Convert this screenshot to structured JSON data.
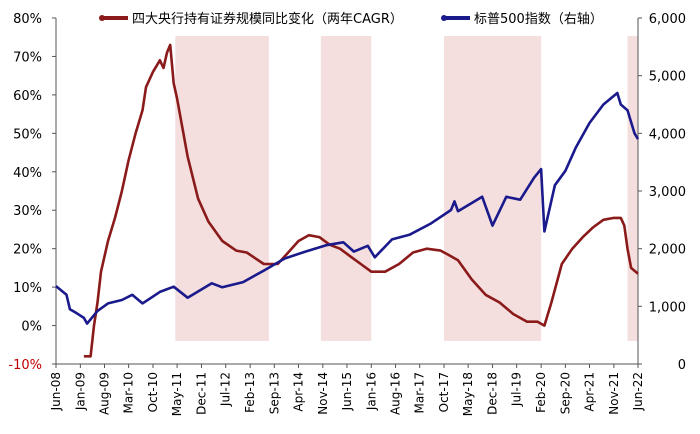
{
  "chart_data": {
    "type": "line",
    "legend": {
      "position": "top"
    },
    "colors": {
      "cagr": "#8b1a1a",
      "sp500": "#1a1a8c",
      "shade": "#f4dede",
      "axis": "#555555"
    },
    "series": [
      {
        "name": "四大央行持有证券规模同比变化（两年CAGR）",
        "axis": "left",
        "points": [
          [
            "2009-02-01",
            -8
          ],
          [
            "2009-04-01",
            -8
          ],
          [
            "2009-05-01",
            0
          ],
          [
            "2009-06-01",
            6
          ],
          [
            "2009-07-01",
            14
          ],
          [
            "2009-09-01",
            22
          ],
          [
            "2009-11-01",
            28
          ],
          [
            "2010-01-01",
            35
          ],
          [
            "2010-03-01",
            43
          ],
          [
            "2010-05-01",
            50
          ],
          [
            "2010-07-01",
            56
          ],
          [
            "2010-08-01",
            62
          ],
          [
            "2010-10-01",
            66
          ],
          [
            "2010-12-01",
            69
          ],
          [
            "2011-01-01",
            67
          ],
          [
            "2011-02-01",
            71
          ],
          [
            "2011-03-01",
            73
          ],
          [
            "2011-04-01",
            63
          ],
          [
            "2011-05-01",
            59
          ],
          [
            "2011-08-01",
            44
          ],
          [
            "2011-11-01",
            33
          ],
          [
            "2012-02-01",
            27
          ],
          [
            "2012-06-01",
            22
          ],
          [
            "2012-10-01",
            19.5
          ],
          [
            "2013-01-01",
            19
          ],
          [
            "2013-06-01",
            16
          ],
          [
            "2013-10-01",
            16
          ],
          [
            "2014-01-01",
            19
          ],
          [
            "2014-04-01",
            22
          ],
          [
            "2014-07-01",
            23.5
          ],
          [
            "2014-10-01",
            23
          ],
          [
            "2015-01-01",
            21
          ],
          [
            "2015-04-01",
            20
          ],
          [
            "2015-07-01",
            18
          ],
          [
            "2015-10-01",
            16
          ],
          [
            "2016-01-01",
            14
          ],
          [
            "2016-05-01",
            14
          ],
          [
            "2016-09-01",
            16
          ],
          [
            "2017-01-01",
            19
          ],
          [
            "2017-05-01",
            20
          ],
          [
            "2017-09-01",
            19.5
          ],
          [
            "2017-11-01",
            18.5
          ],
          [
            "2018-02-01",
            17
          ],
          [
            "2018-06-01",
            12
          ],
          [
            "2018-10-01",
            8
          ],
          [
            "2019-02-01",
            6
          ],
          [
            "2019-06-01",
            3
          ],
          [
            "2019-10-01",
            1
          ],
          [
            "2020-01-01",
            1
          ],
          [
            "2020-03-01",
            0
          ],
          [
            "2020-05-01",
            6
          ],
          [
            "2020-08-01",
            16
          ],
          [
            "2020-11-01",
            20
          ],
          [
            "2021-02-01",
            23
          ],
          [
            "2021-05-01",
            25.5
          ],
          [
            "2021-08-01",
            27.5
          ],
          [
            "2021-11-01",
            28
          ],
          [
            "2022-01-01",
            28
          ],
          [
            "2022-02-01",
            26
          ],
          [
            "2022-03-01",
            20
          ],
          [
            "2022-04-01",
            15
          ],
          [
            "2022-06-01",
            13.5
          ]
        ]
      },
      {
        "name": "标普500指数（右轴）",
        "axis": "right",
        "points": [
          [
            "2008-06-01",
            1350
          ],
          [
            "2008-09-01",
            1200
          ],
          [
            "2008-10-01",
            950
          ],
          [
            "2008-12-01",
            880
          ],
          [
            "2009-02-01",
            800
          ],
          [
            "2009-03-01",
            700
          ],
          [
            "2009-06-01",
            920
          ],
          [
            "2009-09-01",
            1050
          ],
          [
            "2010-01-01",
            1110
          ],
          [
            "2010-04-01",
            1200
          ],
          [
            "2010-07-01",
            1050
          ],
          [
            "2010-12-01",
            1250
          ],
          [
            "2011-04-01",
            1340
          ],
          [
            "2011-08-01",
            1150
          ],
          [
            "2011-10-01",
            1220
          ],
          [
            "2012-03-01",
            1400
          ],
          [
            "2012-06-01",
            1330
          ],
          [
            "2012-12-01",
            1420
          ],
          [
            "2013-06-01",
            1620
          ],
          [
            "2013-12-01",
            1830
          ],
          [
            "2014-06-01",
            1950
          ],
          [
            "2014-12-01",
            2060
          ],
          [
            "2015-05-01",
            2110
          ],
          [
            "2015-08-01",
            1950
          ],
          [
            "2015-12-01",
            2050
          ],
          [
            "2016-02-01",
            1850
          ],
          [
            "2016-07-01",
            2160
          ],
          [
            "2016-12-01",
            2240
          ],
          [
            "2017-06-01",
            2430
          ],
          [
            "2017-12-01",
            2670
          ],
          [
            "2018-01-01",
            2820
          ],
          [
            "2018-02-01",
            2650
          ],
          [
            "2018-09-01",
            2900
          ],
          [
            "2018-12-01",
            2400
          ],
          [
            "2019-04-01",
            2900
          ],
          [
            "2019-08-01",
            2850
          ],
          [
            "2019-12-01",
            3230
          ],
          [
            "2020-02-01",
            3380
          ],
          [
            "2020-03-01",
            2300
          ],
          [
            "2020-06-01",
            3100
          ],
          [
            "2020-09-01",
            3350
          ],
          [
            "2020-12-01",
            3750
          ],
          [
            "2021-04-01",
            4180
          ],
          [
            "2021-08-01",
            4500
          ],
          [
            "2021-12-01",
            4700
          ],
          [
            "2022-01-01",
            4500
          ],
          [
            "2022-03-01",
            4400
          ],
          [
            "2022-05-01",
            4000
          ],
          [
            "2022-06-01",
            3900
          ]
        ]
      }
    ],
    "shaded_periods": [
      [
        "2011-04-15",
        "2013-07-15"
      ],
      [
        "2014-10-15",
        "2016-01-01"
      ],
      [
        "2017-10-01",
        "2020-02-01"
      ],
      [
        "2022-03-01",
        "2022-06-30"
      ]
    ],
    "y_left": {
      "min": -10,
      "max": 80,
      "step": 10,
      "tick_labels": [
        "-10%",
        "0%",
        "10%",
        "20%",
        "30%",
        "40%",
        "50%",
        "60%",
        "70%",
        "80%"
      ]
    },
    "y_right": {
      "min": 0,
      "max": 6000,
      "step": 1000,
      "tick_labels": [
        "0",
        "1,000",
        "2,000",
        "3,000",
        "4,000",
        "5,000",
        "6,000"
      ]
    },
    "x_axis": {
      "min": "2008-06-01",
      "max": "2022-06-01",
      "ticks": [
        [
          "2008-06-01",
          "Jun-08"
        ],
        [
          "2009-01-01",
          "Jan-09"
        ],
        [
          "2009-08-01",
          "Aug-09"
        ],
        [
          "2010-03-01",
          "Mar-10"
        ],
        [
          "2010-10-01",
          "Oct-10"
        ],
        [
          "2011-05-01",
          "May-11"
        ],
        [
          "2011-12-01",
          "Dec-11"
        ],
        [
          "2012-07-01",
          "Jul-12"
        ],
        [
          "2013-02-01",
          "Feb-13"
        ],
        [
          "2013-09-01",
          "Sep-13"
        ],
        [
          "2014-04-01",
          "Apr-14"
        ],
        [
          "2014-11-01",
          "Nov-14"
        ],
        [
          "2015-06-01",
          "Jun-15"
        ],
        [
          "2016-01-01",
          "Jan-16"
        ],
        [
          "2016-08-01",
          "Aug-16"
        ],
        [
          "2017-03-01",
          "Mar-17"
        ],
        [
          "2017-10-01",
          "Oct-17"
        ],
        [
          "2018-05-01",
          "May-18"
        ],
        [
          "2018-12-01",
          "Dec-18"
        ],
        [
          "2019-07-01",
          "Jul-19"
        ],
        [
          "2020-02-01",
          "Feb-20"
        ],
        [
          "2020-09-01",
          "Sep-20"
        ],
        [
          "2021-04-01",
          "Apr-21"
        ],
        [
          "2021-11-01",
          "Nov-21"
        ],
        [
          "2022-06-01",
          "Jun-22"
        ]
      ]
    }
  }
}
